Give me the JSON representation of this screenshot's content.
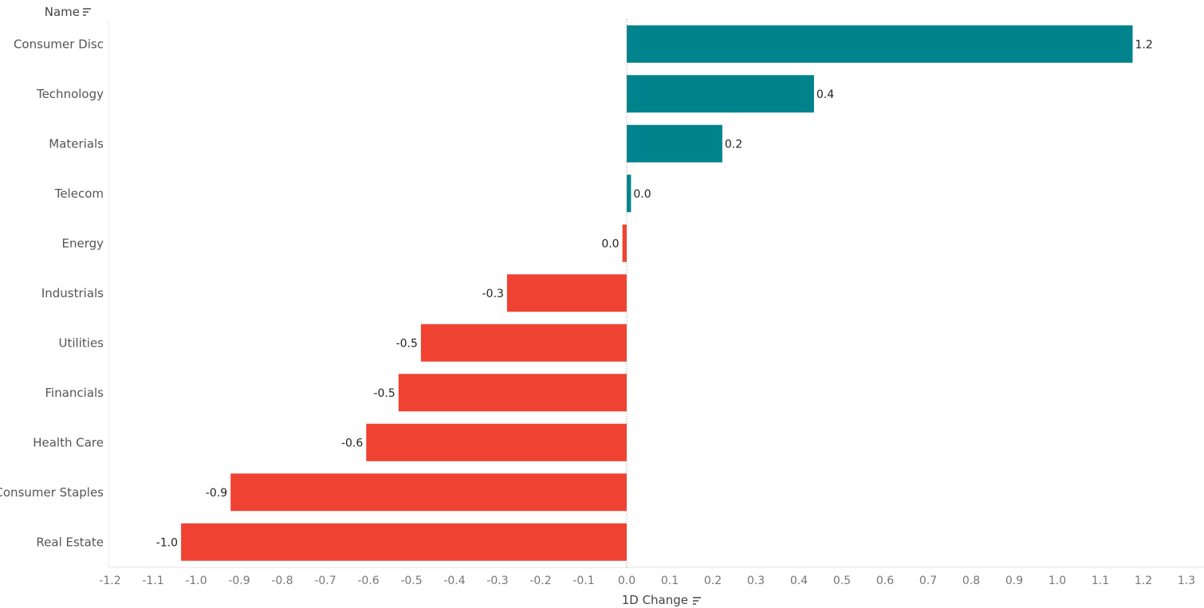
{
  "chart_data": {
    "type": "bar",
    "orientation": "horizontal",
    "row_header": "Name",
    "xlabel": "1D Change",
    "categories": [
      "Consumer Disc",
      "Technology",
      "Materials",
      "Telecom",
      "Energy",
      "Industrials",
      "Utilities",
      "Financials",
      "Health Care",
      "Consumer Staples",
      "Real Estate"
    ],
    "values": [
      1.175,
      0.435,
      0.222,
      0.01,
      -0.01,
      -0.278,
      -0.478,
      -0.53,
      -0.605,
      -0.92,
      -1.035
    ],
    "data_labels": [
      "1.2",
      "0.4",
      "0.2",
      "0.0",
      "0.0",
      "-0.3",
      "-0.5",
      "-0.5",
      "-0.6",
      "-0.9",
      "-1.0"
    ],
    "xlim": [
      -1.2,
      1.3
    ],
    "xticks": [
      "-1.2",
      "-1.1",
      "-1.0",
      "-0.9",
      "-0.8",
      "-0.7",
      "-0.6",
      "-0.5",
      "-0.4",
      "-0.3",
      "-0.2",
      "-0.1",
      "0.0",
      "0.1",
      "0.2",
      "0.3",
      "0.4",
      "0.5",
      "0.6",
      "0.7",
      "0.8",
      "0.9",
      "1.0",
      "1.1",
      "1.2",
      "1.3"
    ],
    "colors": {
      "positive": "#00838c",
      "negative": "#ef4232"
    },
    "grid": false,
    "zero_line": "dotted"
  }
}
